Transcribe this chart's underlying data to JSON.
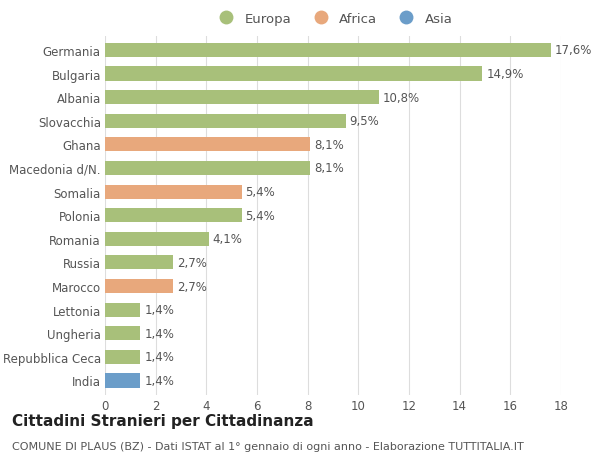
{
  "categories": [
    "Germania",
    "Bulgaria",
    "Albania",
    "Slovacchia",
    "Ghana",
    "Macedonia d/N.",
    "Somalia",
    "Polonia",
    "Romania",
    "Russia",
    "Marocco",
    "Lettonia",
    "Ungheria",
    "Repubblica Ceca",
    "India"
  ],
  "values": [
    17.6,
    14.9,
    10.8,
    9.5,
    8.1,
    8.1,
    5.4,
    5.4,
    4.1,
    2.7,
    2.7,
    1.4,
    1.4,
    1.4,
    1.4
  ],
  "labels": [
    "17,6%",
    "14,9%",
    "10,8%",
    "9,5%",
    "8,1%",
    "8,1%",
    "5,4%",
    "5,4%",
    "4,1%",
    "2,7%",
    "2,7%",
    "1,4%",
    "1,4%",
    "1,4%",
    "1,4%"
  ],
  "continents": [
    "Europa",
    "Europa",
    "Europa",
    "Europa",
    "Africa",
    "Europa",
    "Africa",
    "Europa",
    "Europa",
    "Europa",
    "Africa",
    "Europa",
    "Europa",
    "Europa",
    "Asia"
  ],
  "colors": {
    "Europa": "#a8c07a",
    "Africa": "#e8a87c",
    "Asia": "#6b9dc9"
  },
  "xlim": [
    0,
    18
  ],
  "xticks": [
    0,
    2,
    4,
    6,
    8,
    10,
    12,
    14,
    16,
    18
  ],
  "title": "Cittadini Stranieri per Cittadinanza",
  "subtitle": "COMUNE DI PLAUS (BZ) - Dati ISTAT al 1° gennaio di ogni anno - Elaborazione TUTTITALIA.IT",
  "background_color": "#ffffff",
  "grid_color": "#dddddd",
  "bar_height": 0.6,
  "label_fontsize": 8.5,
  "tick_fontsize": 8.5,
  "title_fontsize": 11,
  "subtitle_fontsize": 8
}
